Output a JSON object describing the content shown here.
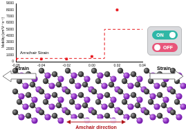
{
  "chart_data": {
    "type": "scatter",
    "y_label": "Mobility (cm²V⁻¹s⁻¹)",
    "annotations": [
      "Armchair Strain"
    ],
    "series": [
      {
        "type": "scatter",
        "color": "#e8191f",
        "marker": "square",
        "x": [
          -0.06,
          -0.04,
          -0.02,
          0.0,
          0.02
        ],
        "values": [
          400,
          400,
          400,
          800,
          8000
        ]
      },
      {
        "type": "line",
        "color": "#e8191f",
        "line_style": "dashed",
        "x": [
          -0.06,
          0.01,
          0.01,
          0.04
        ],
        "values": [
          500,
          500,
          5000,
          5000
        ]
      }
    ],
    "xlim": [
      -0.06,
      0.04
    ],
    "xticks": [
      -0.06,
      -0.04,
      -0.02,
      {
        "value": 0,
        "label": "0.00"
      },
      0.02,
      0.04
    ],
    "ylim": [
      0,
      9000
    ],
    "yticks": [
      0,
      1000,
      2000,
      3000,
      4000,
      5000,
      6000,
      7000,
      8000,
      9000
    ],
    "grid": false
  },
  "toggle": {
    "on": "ON",
    "off": "OFF"
  },
  "diagram": {
    "left_label": "Strain",
    "right_label": "Strain",
    "direction_label": "Amchair direction"
  }
}
